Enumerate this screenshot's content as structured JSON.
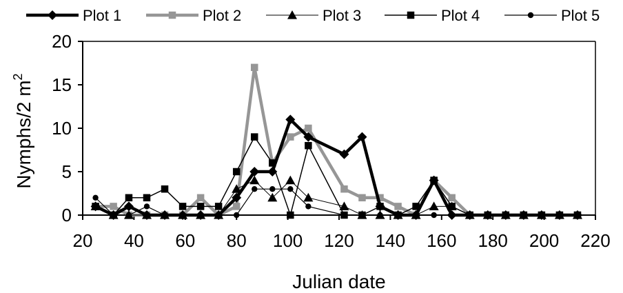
{
  "chart_data": {
    "type": "line",
    "xlabel": "Julian date",
    "ylabel": "Nymphs/2 m",
    "ylabel_sup": "2",
    "xlim": [
      20,
      220
    ],
    "ylim": [
      0,
      20
    ],
    "xticks": [
      20,
      40,
      60,
      80,
      100,
      120,
      140,
      160,
      180,
      200,
      220
    ],
    "yticks": [
      0,
      5,
      10,
      15,
      20
    ],
    "grid": false,
    "legend_position": "top",
    "x": [
      25,
      32,
      38,
      45,
      52,
      59,
      66,
      73,
      80,
      87,
      94,
      101,
      108,
      122,
      129,
      136,
      143,
      150,
      157,
      164,
      171,
      178,
      185,
      192,
      199,
      206,
      213
    ],
    "series": [
      {
        "name": "Plot 1",
        "color": "#000000",
        "marker": "diamond",
        "values": [
          1,
          0,
          1,
          0,
          0,
          0,
          0,
          0,
          2,
          5,
          5,
          11,
          9,
          7,
          9,
          1,
          0,
          0,
          4,
          0,
          0,
          0,
          0,
          0,
          0,
          0,
          0
        ]
      },
      {
        "name": "Plot 2",
        "color": "#969696",
        "marker": "square",
        "values": [
          1,
          1,
          0,
          0,
          0,
          0,
          2,
          0,
          1,
          17,
          6,
          9,
          10,
          3,
          2,
          2,
          1,
          0,
          4,
          2,
          0,
          0,
          0,
          0,
          0,
          0,
          0
        ]
      },
      {
        "name": "Plot 3",
        "color": "#000000",
        "marker": "triangle",
        "values": [
          1,
          0,
          0,
          0,
          0,
          0,
          0,
          0,
          3,
          4,
          2,
          4,
          2,
          1,
          0,
          0,
          0,
          0,
          1,
          1,
          0,
          0,
          0,
          0,
          0,
          0,
          0
        ]
      },
      {
        "name": "Plot 4",
        "color": "#000000",
        "marker": "square",
        "values": [
          1,
          0,
          2,
          2,
          3,
          1,
          1,
          1,
          5,
          9,
          6,
          0,
          8,
          0,
          0,
          1,
          0,
          1,
          4,
          1,
          0,
          0,
          0,
          0,
          0,
          0,
          0
        ]
      },
      {
        "name": "Plot 5",
        "color": "#000000",
        "marker": "circle",
        "values": [
          2,
          0,
          0,
          1,
          0,
          0,
          0,
          0,
          0,
          3,
          3,
          3,
          1,
          0,
          0,
          0,
          0,
          0,
          0,
          0,
          0,
          0,
          0,
          0,
          0,
          0,
          0
        ]
      }
    ]
  }
}
